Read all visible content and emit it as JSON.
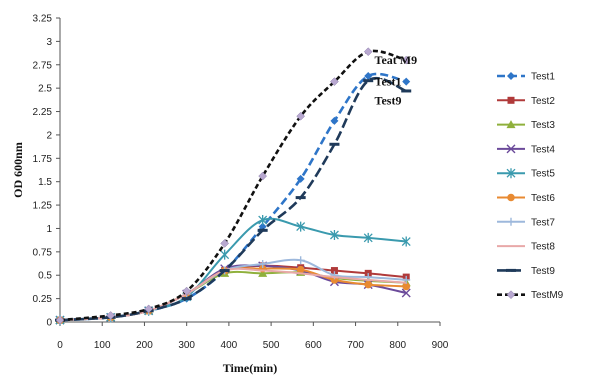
{
  "chart_data": {
    "type": "line",
    "xlabel": "Time(min)",
    "ylabel": "OD 600nm",
    "xlim": [
      0,
      900
    ],
    "ylim": [
      0,
      3.25
    ],
    "x_ticks": [
      "0",
      "100",
      "200",
      "300",
      "400",
      "500",
      "600",
      "700",
      "800",
      "900"
    ],
    "y_ticks": [
      "0",
      "0.25",
      "0.5",
      "0.75",
      "1",
      "1.25",
      "1.5",
      "1.75",
      "2",
      "2.25",
      "2.5",
      "2.75",
      "3",
      "3.25"
    ],
    "grid": false,
    "legend_position": "right",
    "annotations": [
      {
        "text": "Teat M9",
        "x": 745,
        "y": 2.8
      },
      {
        "text": "Test1",
        "x": 745,
        "y": 2.57
      },
      {
        "text": "Test9",
        "x": 745,
        "y": 2.37
      }
    ],
    "series": [
      {
        "name": "Test1",
        "color": "#2e75c8",
        "dash": "8,4",
        "marker": "diamond",
        "points": [
          [
            0,
            0.02
          ],
          [
            120,
            0.05
          ],
          [
            210,
            0.12
          ],
          [
            300,
            0.25
          ],
          [
            390,
            0.55
          ],
          [
            480,
            1.02
          ],
          [
            570,
            1.53
          ],
          [
            650,
            2.15
          ],
          [
            730,
            2.63
          ],
          [
            820,
            2.57
          ]
        ]
      },
      {
        "name": "Test2",
        "color": "#b03a3a",
        "dash": "",
        "marker": "square",
        "points": [
          [
            0,
            0.02
          ],
          [
            120,
            0.05
          ],
          [
            210,
            0.12
          ],
          [
            300,
            0.3
          ],
          [
            390,
            0.55
          ],
          [
            480,
            0.6
          ],
          [
            570,
            0.58
          ],
          [
            650,
            0.55
          ],
          [
            730,
            0.52
          ],
          [
            820,
            0.48
          ]
        ]
      },
      {
        "name": "Test3",
        "color": "#8fb03c",
        "dash": "",
        "marker": "triangle",
        "points": [
          [
            0,
            0.02
          ],
          [
            120,
            0.05
          ],
          [
            210,
            0.12
          ],
          [
            300,
            0.3
          ],
          [
            390,
            0.52
          ],
          [
            480,
            0.52
          ],
          [
            570,
            0.53
          ],
          [
            650,
            0.47
          ],
          [
            730,
            0.44
          ],
          [
            820,
            0.42
          ]
        ]
      },
      {
        "name": "Test4",
        "color": "#6b4a9a",
        "dash": "",
        "marker": "x",
        "points": [
          [
            0,
            0.02
          ],
          [
            120,
            0.05
          ],
          [
            210,
            0.12
          ],
          [
            300,
            0.3
          ],
          [
            390,
            0.57
          ],
          [
            480,
            0.6
          ],
          [
            570,
            0.55
          ],
          [
            650,
            0.43
          ],
          [
            730,
            0.4
          ],
          [
            820,
            0.31
          ]
        ]
      },
      {
        "name": "Test5",
        "color": "#3a9aae",
        "dash": "",
        "marker": "star",
        "points": [
          [
            0,
            0.02
          ],
          [
            120,
            0.05
          ],
          [
            210,
            0.12
          ],
          [
            300,
            0.27
          ],
          [
            390,
            0.72
          ],
          [
            480,
            1.09
          ],
          [
            570,
            1.02
          ],
          [
            650,
            0.93
          ],
          [
            730,
            0.9
          ],
          [
            820,
            0.86
          ]
        ]
      },
      {
        "name": "Test6",
        "color": "#e88a32",
        "dash": "",
        "marker": "circle",
        "points": [
          [
            0,
            0.02
          ],
          [
            120,
            0.05
          ],
          [
            210,
            0.12
          ],
          [
            300,
            0.3
          ],
          [
            390,
            0.55
          ],
          [
            480,
            0.57
          ],
          [
            570,
            0.56
          ],
          [
            650,
            0.45
          ],
          [
            730,
            0.4
          ],
          [
            820,
            0.38
          ]
        ]
      },
      {
        "name": "Test7",
        "color": "#9db8dc",
        "dash": "",
        "marker": "plus",
        "points": [
          [
            0,
            0.02
          ],
          [
            120,
            0.05
          ],
          [
            210,
            0.12
          ],
          [
            300,
            0.3
          ],
          [
            390,
            0.55
          ],
          [
            480,
            0.62
          ],
          [
            570,
            0.66
          ],
          [
            650,
            0.5
          ],
          [
            730,
            0.48
          ],
          [
            820,
            0.45
          ]
        ]
      },
      {
        "name": "Test8",
        "color": "#e8a8a8",
        "dash": "",
        "marker": "none",
        "points": [
          [
            0,
            0.02
          ],
          [
            120,
            0.05
          ],
          [
            210,
            0.12
          ],
          [
            300,
            0.3
          ],
          [
            390,
            0.55
          ],
          [
            480,
            0.55
          ],
          [
            570,
            0.52
          ],
          [
            650,
            0.48
          ],
          [
            730,
            0.45
          ],
          [
            820,
            0.42
          ]
        ]
      },
      {
        "name": "Test9",
        "color": "#1f3a5a",
        "dash": "10,4",
        "marker": "dash",
        "points": [
          [
            0,
            0.02
          ],
          [
            120,
            0.05
          ],
          [
            210,
            0.12
          ],
          [
            300,
            0.25
          ],
          [
            390,
            0.55
          ],
          [
            480,
            0.98
          ],
          [
            570,
            1.33
          ],
          [
            650,
            1.9
          ],
          [
            730,
            2.58
          ],
          [
            820,
            2.47
          ]
        ]
      },
      {
        "name": "TestM9",
        "color": "#111111",
        "dash": "5,3",
        "marker": "diamond-light",
        "points": [
          [
            0,
            0.02
          ],
          [
            120,
            0.07
          ],
          [
            210,
            0.14
          ],
          [
            300,
            0.33
          ],
          [
            390,
            0.84
          ],
          [
            480,
            1.56
          ],
          [
            570,
            2.2
          ],
          [
            650,
            2.57
          ],
          [
            730,
            2.89
          ],
          [
            820,
            2.8
          ]
        ]
      }
    ]
  }
}
